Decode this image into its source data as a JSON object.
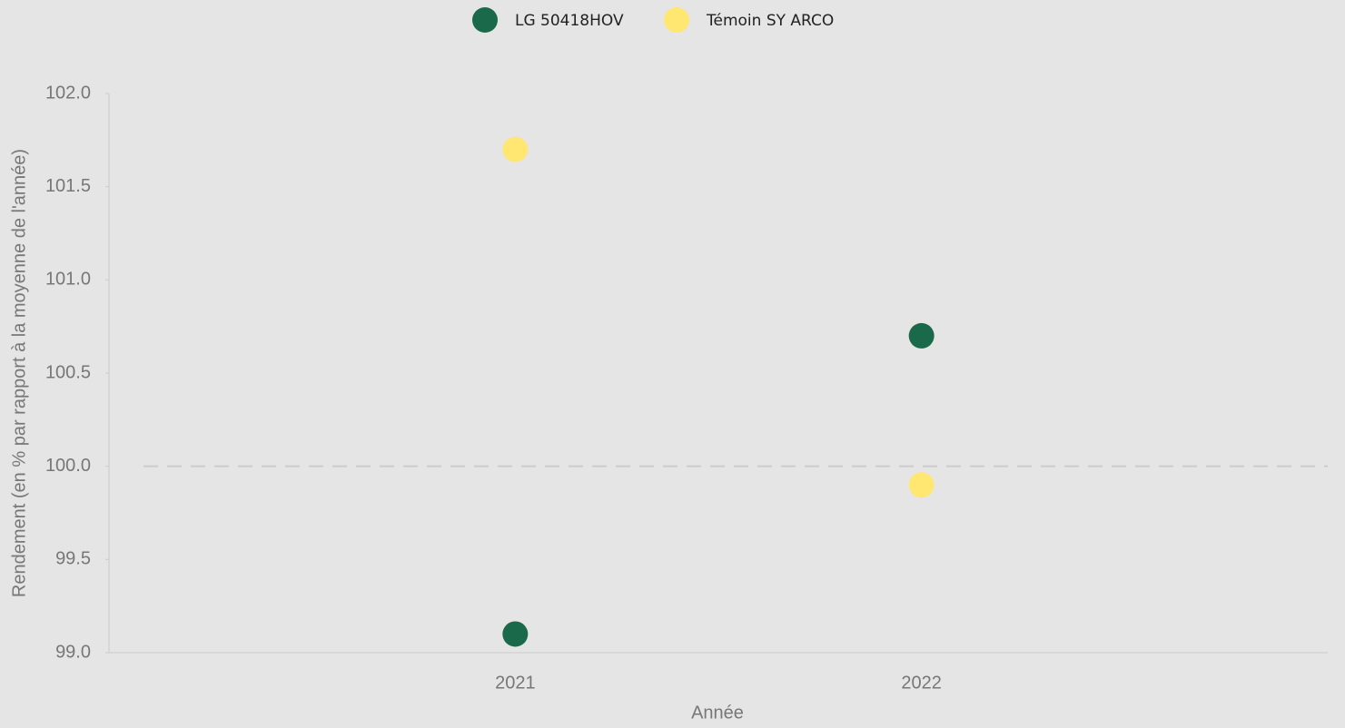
{
  "chart_data": {
    "type": "scatter",
    "x_label": "Année",
    "y_label": "Rendement (en % par rapport à la moyenne de l'année)",
    "categories": [
      "2021",
      "2022"
    ],
    "series": [
      {
        "name": "LG 50418HOV",
        "color": "#19694a",
        "values": [
          99.1,
          100.7
        ]
      },
      {
        "name": "Témoin SY ARCO",
        "color": "#ffe771",
        "values": [
          101.7,
          99.9
        ]
      }
    ],
    "ylim": [
      99,
      102
    ],
    "yticks": [
      {
        "value": 99,
        "label": "99.0"
      },
      99.5,
      {
        "value": 100,
        "label": "100.0"
      },
      100.5,
      {
        "value": 101,
        "label": "101.0"
      },
      101.5,
      {
        "value": 102,
        "label": "102.0"
      }
    ],
    "reference_line": 100,
    "legend": "top"
  }
}
